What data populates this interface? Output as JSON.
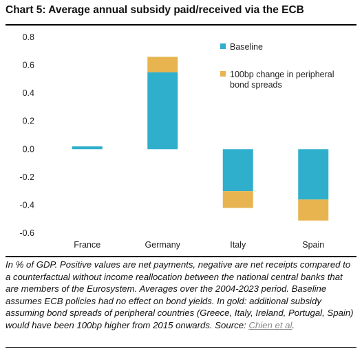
{
  "title": "Chart 5: Average annual subsidy paid/received via the ECB",
  "chart_data": {
    "type": "bar",
    "stacked": true,
    "categories": [
      "France",
      "Germany",
      "Italy",
      "Spain"
    ],
    "series": [
      {
        "name": "Baseline",
        "color": "#2FAFCC",
        "values": [
          0.02,
          0.55,
          -0.3,
          -0.36
        ]
      },
      {
        "name": "100bp change in peripheral bond spreads",
        "color": "#E8B450",
        "values": [
          0.0,
          0.11,
          -0.12,
          -0.15
        ]
      }
    ],
    "yticks": [
      "0.8",
      "0.6",
      "0.4",
      "0.2",
      "0.0",
      "-0.2",
      "-0.4",
      "-0.6"
    ],
    "ylim": [
      -0.6,
      0.8
    ],
    "grid": false,
    "legend_position": "top-right"
  },
  "note": {
    "text": "In % of GDP. Positive values are net payments, negative are net receipts compared to a counterfactual without income reallocation between the national central banks that are members of the Eurosystem. Averages over the 2004-2023 period. Baseline assumes ECB policies had no effect on bond yields. In gold: additional subsidy assuming bond spreads of peripheral countries (Greece, Italy, Ireland, Portugal, Spain) would have been 100bp higher from 2015 onwards. Source: ",
    "link_text": "Chien et al",
    "end": "."
  }
}
